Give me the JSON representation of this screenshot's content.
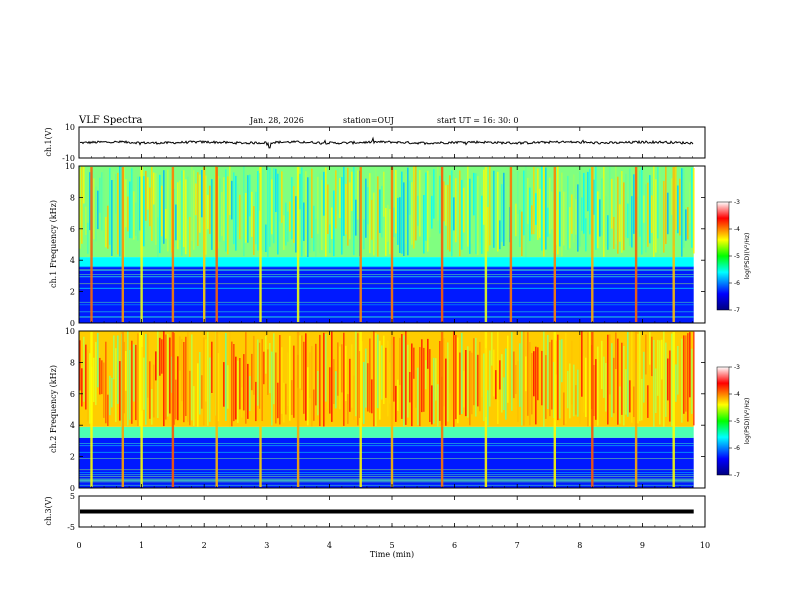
{
  "header": {
    "title": "VLF Spectra",
    "date": "Jan. 28, 2026",
    "station": "station=OUJ",
    "start_time": "start UT =  16: 30: 0"
  },
  "chart_data": [
    {
      "type": "line",
      "panel": "ch1-waveform",
      "ylabel": "ch.1(V)",
      "ylim": [
        -10,
        10
      ],
      "yticks": [
        "10",
        "-10"
      ],
      "baseline": 0,
      "color": "#000000"
    },
    {
      "type": "heatmap",
      "panel": "ch1-spectrogram",
      "ylabel": "ch.1 Frequency (kHz)",
      "ylim": [
        0,
        10
      ],
      "yticks": [
        "0",
        "2",
        "4",
        "6",
        "8",
        "10"
      ],
      "colorbar": {
        "label": "log(PSD)(V²/Hz)",
        "ticks": [
          "-3",
          "-4",
          "-5",
          "-6",
          "-7"
        ],
        "range": [
          -7,
          -3
        ]
      },
      "bands": [
        {
          "from_khz": 0,
          "to_khz": 3.6,
          "level": -6.4
        },
        {
          "from_khz": 3.6,
          "to_khz": 4.2,
          "level": -5.5
        },
        {
          "from_khz": 4.2,
          "to_khz": 10,
          "level": -5.0
        }
      ],
      "bursts_min": [
        0.2,
        0.7,
        1.0,
        1.5,
        2.0,
        2.2,
        2.9,
        3.5,
        4.5,
        5.0,
        5.8,
        6.5,
        6.9,
        7.6,
        8.2,
        8.9,
        9.5
      ]
    },
    {
      "type": "heatmap",
      "panel": "ch2-spectrogram",
      "ylabel": "ch.2 Frequency (kHz)",
      "ylim": [
        0,
        10
      ],
      "yticks": [
        "0",
        "2",
        "4",
        "6",
        "8",
        "10"
      ],
      "colorbar": {
        "label": "log(PSD)(V²/Hz)",
        "ticks": [
          "-3",
          "-4",
          "-5",
          "-6",
          "-7"
        ],
        "range": [
          -7,
          -3
        ]
      },
      "bands": [
        {
          "from_khz": 0,
          "to_khz": 3.2,
          "level": -6.4
        },
        {
          "from_khz": 3.2,
          "to_khz": 3.9,
          "level": -5.2
        },
        {
          "from_khz": 3.9,
          "to_khz": 10,
          "level": -4.3
        }
      ],
      "bursts_min": [
        0.2,
        0.7,
        1.0,
        1.5,
        2.2,
        2.9,
        3.5,
        4.5,
        5.0,
        5.8,
        6.5,
        7.6,
        8.2,
        8.9,
        9.5
      ]
    },
    {
      "type": "line",
      "panel": "ch3-waveform",
      "ylabel": "ch.3(V)",
      "ylim": [
        -5,
        5
      ],
      "yticks": [
        "5",
        "-5"
      ],
      "baseline": 0,
      "color": "#000000"
    }
  ],
  "xaxis": {
    "label": "Time (min)",
    "range": [
      0,
      10
    ],
    "ticks": [
      "0",
      "1",
      "2",
      "3",
      "4",
      "5",
      "6",
      "7",
      "8",
      "9",
      "10"
    ],
    "data_end_min": 9.82
  }
}
